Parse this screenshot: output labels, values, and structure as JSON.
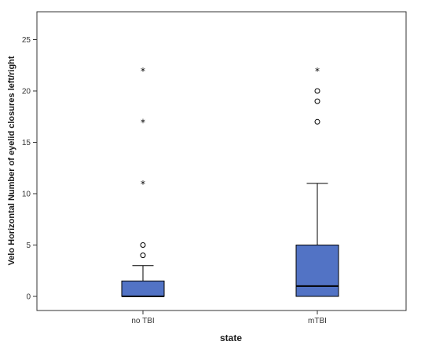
{
  "chart_data": {
    "type": "boxplot",
    "xlabel": "state",
    "ylabel": "Velo Horizontal Number of eyelid closures left/right",
    "ylim": [
      -1.5,
      28
    ],
    "yticks": [
      0,
      5,
      10,
      15,
      20,
      25
    ],
    "grid": false,
    "legend": "none",
    "box_color": "#5273c5",
    "categories": [
      "no TBI",
      "mTBI"
    ],
    "boxes": [
      {
        "category": "no TBI",
        "min": 0,
        "q1": 0,
        "median": 0,
        "q3": 1.5,
        "max": 3,
        "outliers": [
          4,
          5
        ],
        "extremes": [
          11,
          17,
          22
        ]
      },
      {
        "category": "mTBI",
        "min": 0,
        "q1": 0,
        "median": 1,
        "q3": 5,
        "max": 11,
        "outliers": [
          17,
          19,
          20
        ],
        "extremes": [
          22
        ]
      }
    ]
  }
}
